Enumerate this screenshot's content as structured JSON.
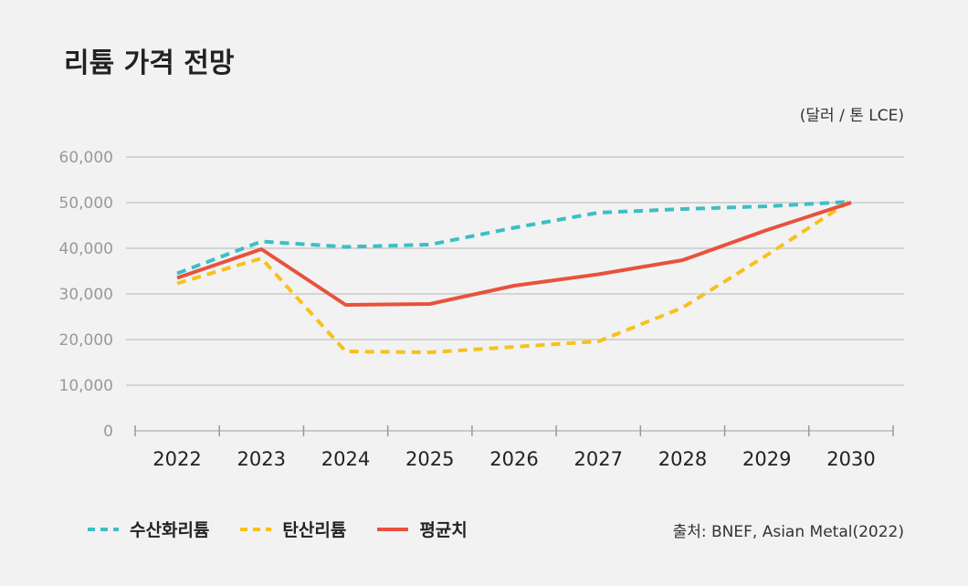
{
  "title": "리튬 가격 전망",
  "unit_note": "(달러 / 톤 LCE)",
  "source": "출처: BNEF, Asian Metal(2022)",
  "chart_data": {
    "type": "line",
    "title": "리튬 가격 전망",
    "xlabel": "",
    "ylabel": "",
    "x": [
      "2022",
      "2023",
      "2024",
      "2025",
      "2026",
      "2027",
      "2028",
      "2029",
      "2030"
    ],
    "yticks": [
      "0",
      "10,000",
      "20,000",
      "30,000",
      "40,000",
      "50,000",
      "60,000"
    ],
    "ylim": [
      0,
      60000
    ],
    "grid": true,
    "legend_position": "bottom-left",
    "series": [
      {
        "name": "수산화리튬",
        "color": "#3bbfc4",
        "style": "dashed",
        "values": [
          34500,
          41500,
          40300,
          40800,
          44500,
          47800,
          48600,
          49200,
          50200
        ]
      },
      {
        "name": "탄산리튬",
        "color": "#f7c11e",
        "style": "dashed",
        "values": [
          32300,
          37800,
          17400,
          17200,
          18400,
          19600,
          27000,
          38500,
          50500
        ]
      },
      {
        "name": "평균치",
        "color": "#e8523d",
        "style": "solid",
        "values": [
          33500,
          39800,
          27600,
          27800,
          31800,
          34300,
          37400,
          44000,
          50000
        ]
      }
    ]
  }
}
